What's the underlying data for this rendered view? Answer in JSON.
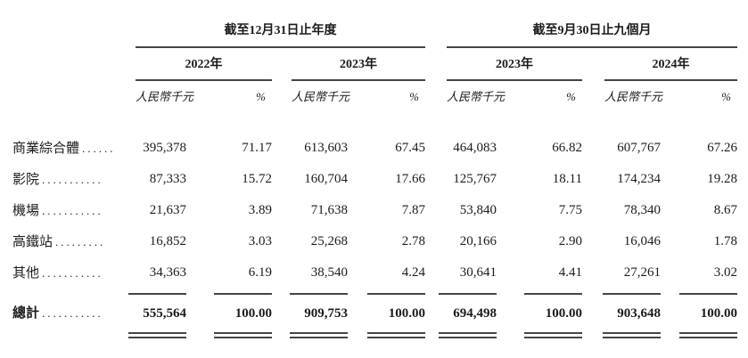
{
  "table": {
    "groups": [
      {
        "title": "截至12月31日止年度"
      },
      {
        "title": "截至9月30日止九個月"
      }
    ],
    "years": [
      {
        "label": "2022年"
      },
      {
        "label": "2023年"
      },
      {
        "label": "2023年"
      },
      {
        "label": "2024年"
      }
    ],
    "col_headers": {
      "amount": "人民幣千元",
      "pct": "%"
    },
    "rows": [
      {
        "label": "商業綜合體",
        "dots": "......",
        "values": [
          "395,378",
          "71.17",
          "613,603",
          "67.45",
          "464,083",
          "66.82",
          "607,767",
          "67.26"
        ]
      },
      {
        "label": "影院",
        "dots": "...........",
        "values": [
          "87,333",
          "15.72",
          "160,704",
          "17.66",
          "125,767",
          "18.11",
          "174,234",
          "19.28"
        ]
      },
      {
        "label": "機場",
        "dots": "...........",
        "values": [
          "21,637",
          "3.89",
          "71,638",
          "7.87",
          "53,840",
          "7.75",
          "78,340",
          "8.67"
        ]
      },
      {
        "label": "高鐵站",
        "dots": ".........",
        "values": [
          "16,852",
          "3.03",
          "25,268",
          "2.78",
          "20,166",
          "2.90",
          "16,046",
          "1.78"
        ]
      },
      {
        "label": "其他",
        "dots": "...........",
        "values": [
          "34,363",
          "6.19",
          "38,540",
          "4.24",
          "30,641",
          "4.41",
          "27,261",
          "3.02"
        ]
      }
    ],
    "total": {
      "label": "總計",
      "dots": "...........",
      "values": [
        "555,564",
        "100.00",
        "909,753",
        "100.00",
        "694,498",
        "100.00",
        "903,648",
        "100.00"
      ]
    }
  }
}
